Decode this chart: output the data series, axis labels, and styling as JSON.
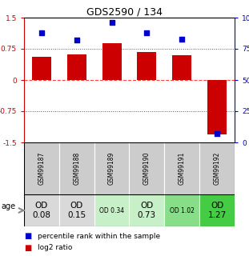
{
  "title": "GDS2590 / 134",
  "samples": [
    "GSM99187",
    "GSM99188",
    "GSM99189",
    "GSM99190",
    "GSM99191",
    "GSM99192"
  ],
  "log2_ratio": [
    0.55,
    0.62,
    0.88,
    0.68,
    0.6,
    -1.3
  ],
  "percentile_rank": [
    88,
    82,
    96,
    88,
    83,
    7
  ],
  "ylim_left": [
    -1.5,
    1.5
  ],
  "yticks_left": [
    -1.5,
    -0.75,
    0,
    0.75,
    1.5
  ],
  "yticks_right": [
    0,
    25,
    50,
    75,
    100
  ],
  "bar_color": "#cc0000",
  "dot_color": "#0000cc",
  "hline_color_zero": "#ff4444",
  "hline_color_dotted": "#555555",
  "age_label": "age",
  "age_values": [
    "OD\n0.08",
    "OD\n0.15",
    "OD 0.34",
    "OD\n0.73",
    "OD 1.02",
    "OD\n1.27"
  ],
  "age_fontsize_large": [
    true,
    true,
    false,
    true,
    false,
    true
  ],
  "cell_colors": [
    "#d9d9d9",
    "#d9d9d9",
    "#c8f0c8",
    "#c8f0c8",
    "#88dd88",
    "#44cc44"
  ],
  "sample_bg_color": "#cccccc",
  "legend_log2": "log2 ratio",
  "legend_pct": "percentile rank within the sample",
  "title_fontsize": 9,
  "tick_fontsize": 6.5,
  "sample_fontsize": 5.5,
  "legend_fontsize": 6.5
}
